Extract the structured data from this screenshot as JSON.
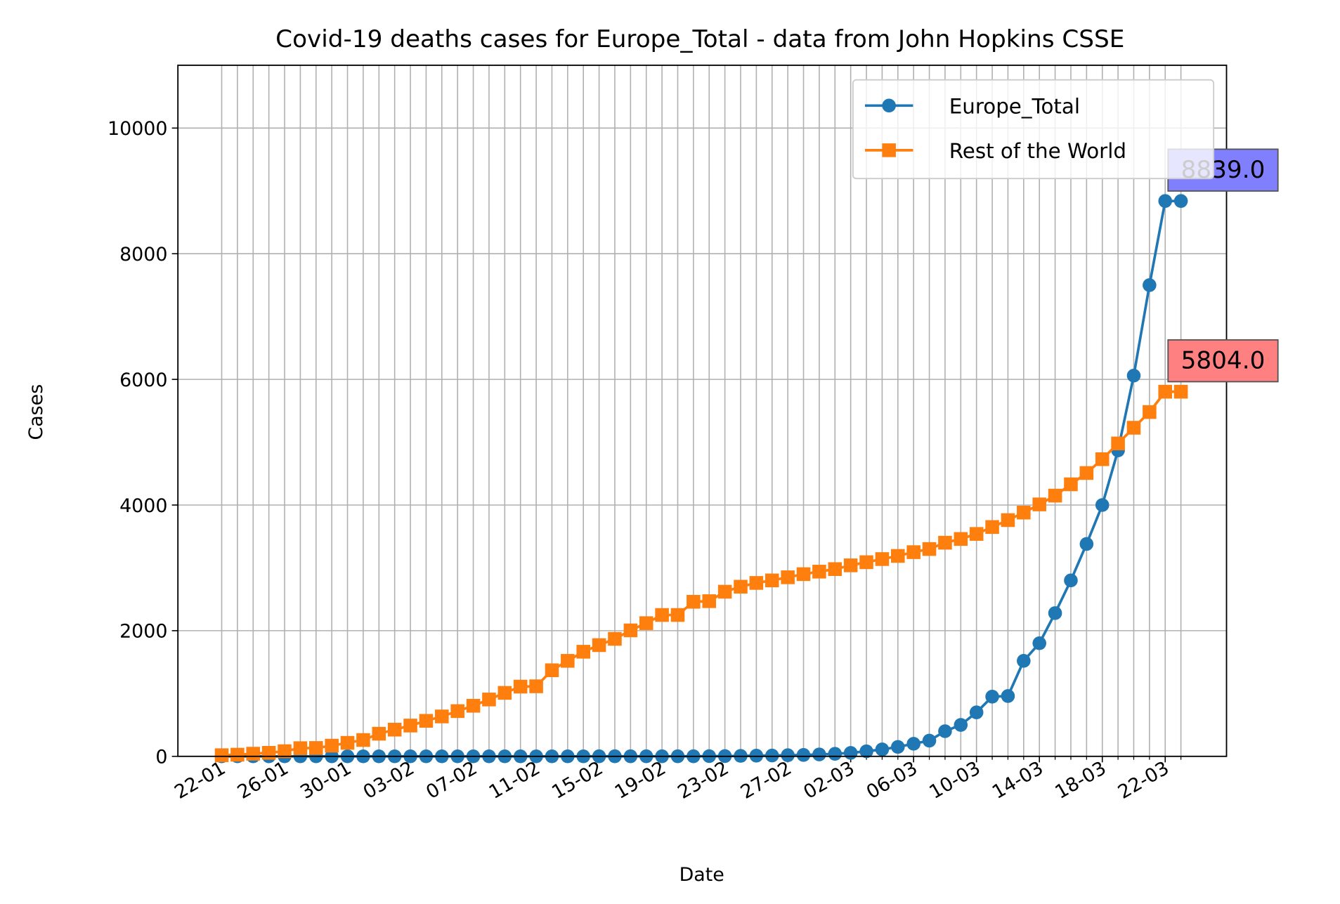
{
  "chart_data": {
    "type": "line",
    "title": "Covid-19 deaths cases for Europe_Total - data from John Hopkins CSSE",
    "xlabel": "Date",
    "ylabel": "Cases",
    "categories": [
      "22-01",
      null,
      null,
      null,
      "26-01",
      null,
      null,
      null,
      "30-01",
      null,
      null,
      null,
      "03-02",
      null,
      null,
      null,
      "07-02",
      null,
      null,
      null,
      "11-02",
      null,
      null,
      null,
      "15-02",
      null,
      null,
      null,
      "19-02",
      null,
      null,
      null,
      "23-02",
      null,
      null,
      null,
      "27-02",
      null,
      null,
      null,
      "02-03",
      null,
      null,
      null,
      "06-03",
      null,
      null,
      null,
      "10-03",
      null,
      null,
      null,
      "14-03",
      null,
      null,
      null,
      "18-03",
      null,
      null,
      null,
      "22-03",
      null
    ],
    "series": [
      {
        "name": "Europe_Total",
        "color": "#1f77b4",
        "marker": "circle",
        "values": [
          0,
          0,
          0,
          0,
          0,
          0,
          0,
          0,
          0,
          0,
          0,
          0,
          0,
          0,
          0,
          0,
          0,
          0,
          0,
          0,
          0,
          0,
          0,
          0,
          1,
          1,
          1,
          1,
          1,
          1,
          1,
          3,
          4,
          7,
          11,
          13,
          18,
          22,
          30,
          40,
          55,
          80,
          110,
          150,
          200,
          250,
          400,
          500,
          700,
          950,
          960,
          1520,
          1800,
          2280,
          2800,
          3380,
          4000,
          4870,
          6060,
          7500,
          8839,
          8839
        ]
      },
      {
        "name": "Rest of the World",
        "color": "#ff7f0e",
        "marker": "square",
        "values": [
          18,
          26,
          42,
          56,
          82,
          130,
          133,
          170,
          215,
          260,
          360,
          425,
          490,
          565,
          635,
          720,
          805,
          905,
          1010,
          1110,
          1115,
          1370,
          1520,
          1665,
          1770,
          1870,
          2005,
          2120,
          2250,
          2250,
          2460,
          2470,
          2620,
          2700,
          2760,
          2800,
          2850,
          2900,
          2940,
          2980,
          3040,
          3090,
          3140,
          3190,
          3250,
          3300,
          3400,
          3460,
          3540,
          3650,
          3760,
          3880,
          4010,
          4150,
          4330,
          4510,
          4730,
          4980,
          5230,
          5480,
          5804,
          5804
        ]
      }
    ],
    "annotations": [
      {
        "text": "8839.0",
        "color": "#8080ff"
      },
      {
        "text": "5804.0",
        "color": "#ff8080"
      }
    ],
    "ylim": [
      0,
      11000
    ],
    "yticks": [
      0,
      2000,
      4000,
      6000,
      8000,
      10000
    ],
    "grid": true,
    "legend": "upper right"
  }
}
